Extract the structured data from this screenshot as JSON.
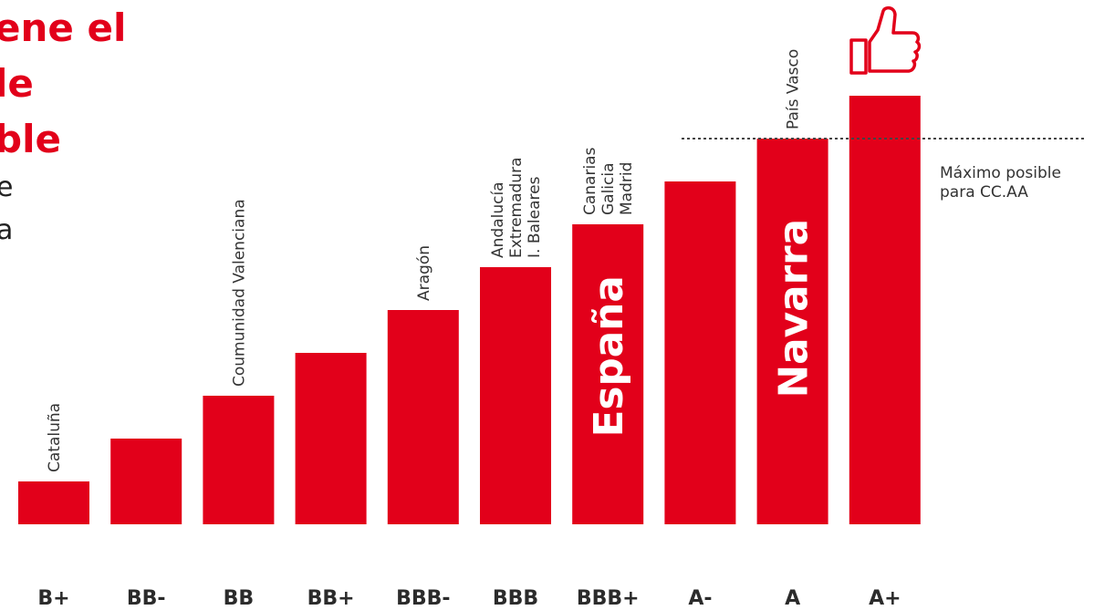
{
  "headline": {
    "lines": [
      "ene el",
      "le",
      "ble"
    ]
  },
  "body_text": {
    "lines": [
      "e",
      "a"
    ]
  },
  "colors": {
    "bar": "#e2001a",
    "accent": "#e2001a",
    "text": "#333333",
    "category_text": "#2b2b2b"
  },
  "icons": {
    "top": "thumbs-up-icon"
  },
  "chart_data": {
    "type": "bar",
    "categories": [
      "B+",
      "BB-",
      "BB",
      "BB+",
      "BBB-",
      "BBB",
      "BBB+",
      "A-",
      "A",
      "A+"
    ],
    "values": [
      1,
      2,
      3,
      4,
      5,
      6,
      7,
      8,
      9,
      10
    ],
    "ylim": [
      0,
      10
    ],
    "grid": false,
    "legend": "none",
    "bar_labels": [
      {
        "category": "B+",
        "lines": [
          "Cataluña"
        ]
      },
      {
        "category": "BB",
        "lines": [
          "Coumunidad Valenciana"
        ]
      },
      {
        "category": "BBB-",
        "lines": [
          "Aragón"
        ]
      },
      {
        "category": "BBB",
        "lines": [
          "Andalucía",
          "Extremadura",
          "I. Baleares"
        ]
      },
      {
        "category": "BBB+",
        "lines": [
          "Canarias",
          "Galicia",
          "Madrid"
        ]
      },
      {
        "category": "A",
        "lines": [
          "País Vasco"
        ]
      }
    ],
    "in_bar_labels": [
      {
        "category": "BBB+",
        "text": "España"
      },
      {
        "category": "A",
        "text": "Navarra"
      }
    ],
    "reference_line": {
      "value": 9,
      "label_lines": [
        "Máximo posible",
        "para CC.AA"
      ]
    }
  }
}
